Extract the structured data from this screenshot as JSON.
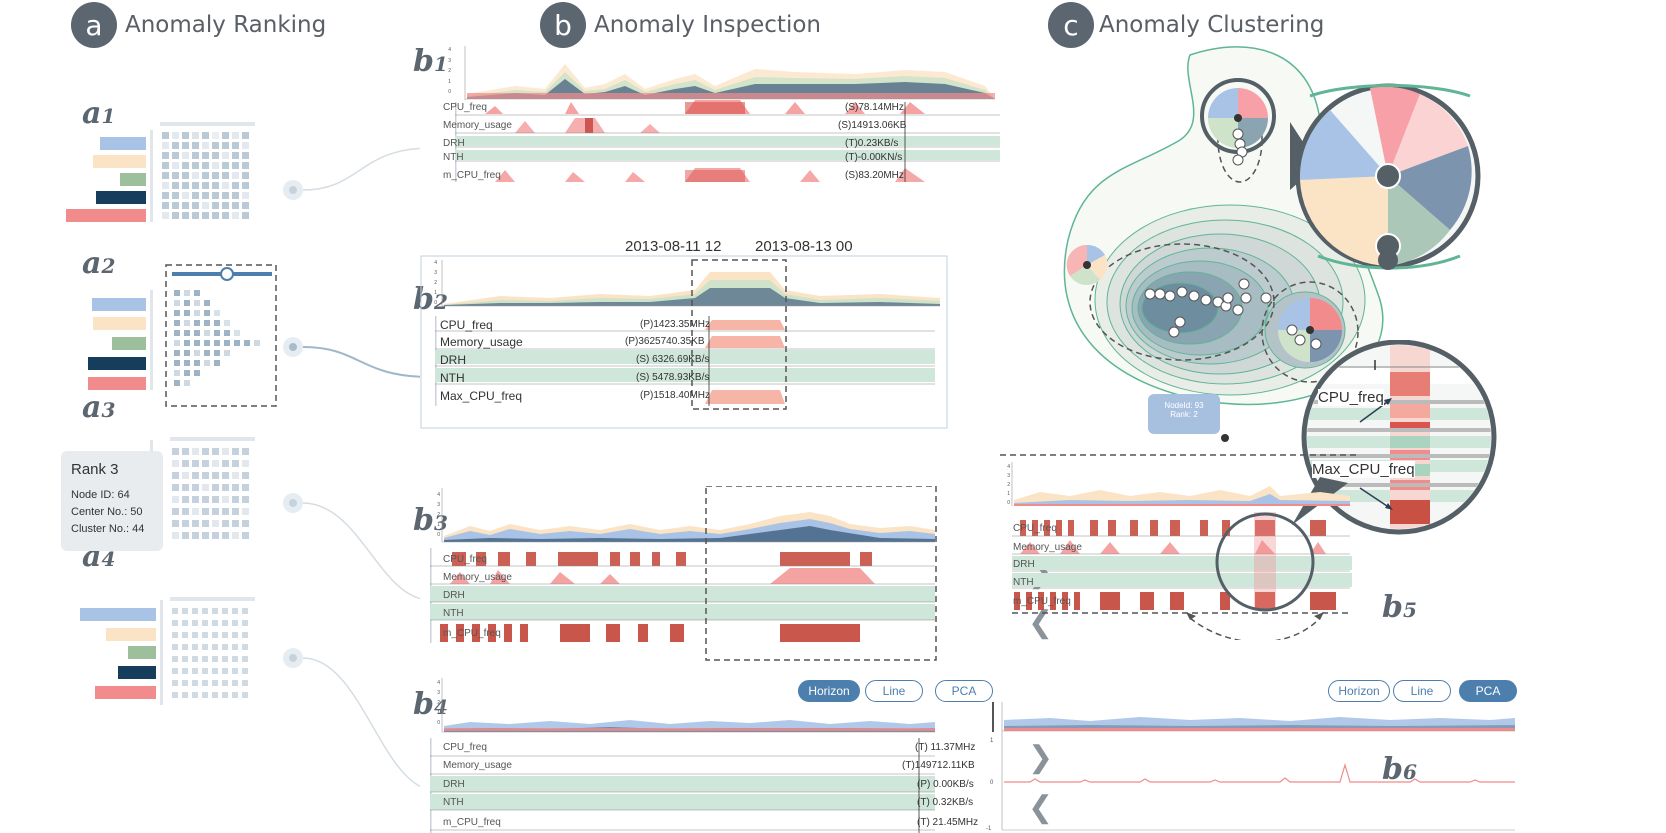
{
  "sections": {
    "a": {
      "badge": "a",
      "title": "Anomaly Ranking"
    },
    "b": {
      "badge": "b",
      "title": "Anomaly Inspection"
    },
    "c": {
      "badge": "c",
      "title": "Anomaly Clustering"
    }
  },
  "panel_labels": {
    "a1": {
      "letter": "a",
      "num": "1"
    },
    "a2": {
      "letter": "a",
      "num": "2"
    },
    "a3": {
      "letter": "a",
      "num": "3"
    },
    "a4": {
      "letter": "a",
      "num": "4"
    },
    "b1": {
      "letter": "b",
      "num": "1"
    },
    "b2": {
      "letter": "b",
      "num": "2"
    },
    "b3": {
      "letter": "b",
      "num": "3"
    },
    "b4": {
      "letter": "b",
      "num": "4"
    },
    "b5": {
      "letter": "b",
      "num": "5"
    },
    "b6": {
      "letter": "b",
      "num": "6"
    }
  },
  "rank_card": {
    "title": "Rank 3",
    "node_id": "Node ID: 64",
    "center_no": "Center No.: 50",
    "cluster_no": "Cluster No.: 44"
  },
  "b1": {
    "rows": [
      "CPU_freq",
      "Memory_usage",
      "DRH",
      "NTH",
      "m_CPU_freq"
    ],
    "values": [
      "(S)78.14MHz",
      "(S)14913.06KB",
      "(T)0.23KB/s",
      "(T)-0.00KN/s",
      "(S)83.20MHz"
    ]
  },
  "b2": {
    "date_start": "2013-08-11  12",
    "date_end": "2013-08-13  00",
    "rows": [
      "CPU_freq",
      "Memory_usage",
      "DRH",
      "NTH",
      "Max_CPU_freq"
    ],
    "values": [
      "(P)1423.35MHz",
      "(P)3625740.35KB",
      "(S) 6326.69KB/s",
      "(S) 5478.93KB/s",
      "(P)1518.40MHz"
    ]
  },
  "b3": {
    "rows": [
      "CPU_freq",
      "Memory_usage",
      "DRH",
      "NTH",
      "m_CPU_freq"
    ]
  },
  "b4": {
    "rows": [
      "CPU_freq",
      "Memory_usage",
      "DRH",
      "NTH",
      "m_CPU_freq"
    ],
    "values": [
      "(T) 11.37MHz",
      "(T)149712.11KB",
      "(P)  0.00KB/s",
      "(T)  0.32KB/s",
      "(T) 21.45MHz"
    ],
    "buttons": {
      "horizon": "Horizon",
      "line": "Line",
      "pca": "PCA"
    }
  },
  "b5": {
    "rows": [
      "CPU_freq",
      "Memory_usage",
      "DRH",
      "NTH",
      "m_CPU_freq"
    ]
  },
  "b6": {
    "buttons": {
      "horizon": "Horizon",
      "line": "Line",
      "pca": "PCA"
    },
    "y_ticks": [
      "1",
      "0",
      "-1"
    ]
  },
  "zoom_labels": {
    "cpu": "CPU_freq",
    "max_cpu": "Max_CPU_freq"
  },
  "tooltip": {
    "line1": "NodeId: 93",
    "line2": "Rank: 2"
  },
  "mini_y_ticks": [
    "4",
    "3",
    "2",
    "1",
    "0"
  ],
  "colors": {
    "accent": "#4d7fae",
    "red": "#f28b8b",
    "green": "#cfe6da",
    "navy": "#163e5c",
    "blue": "#a9c3e6",
    "peach": "#fbe3c6"
  }
}
